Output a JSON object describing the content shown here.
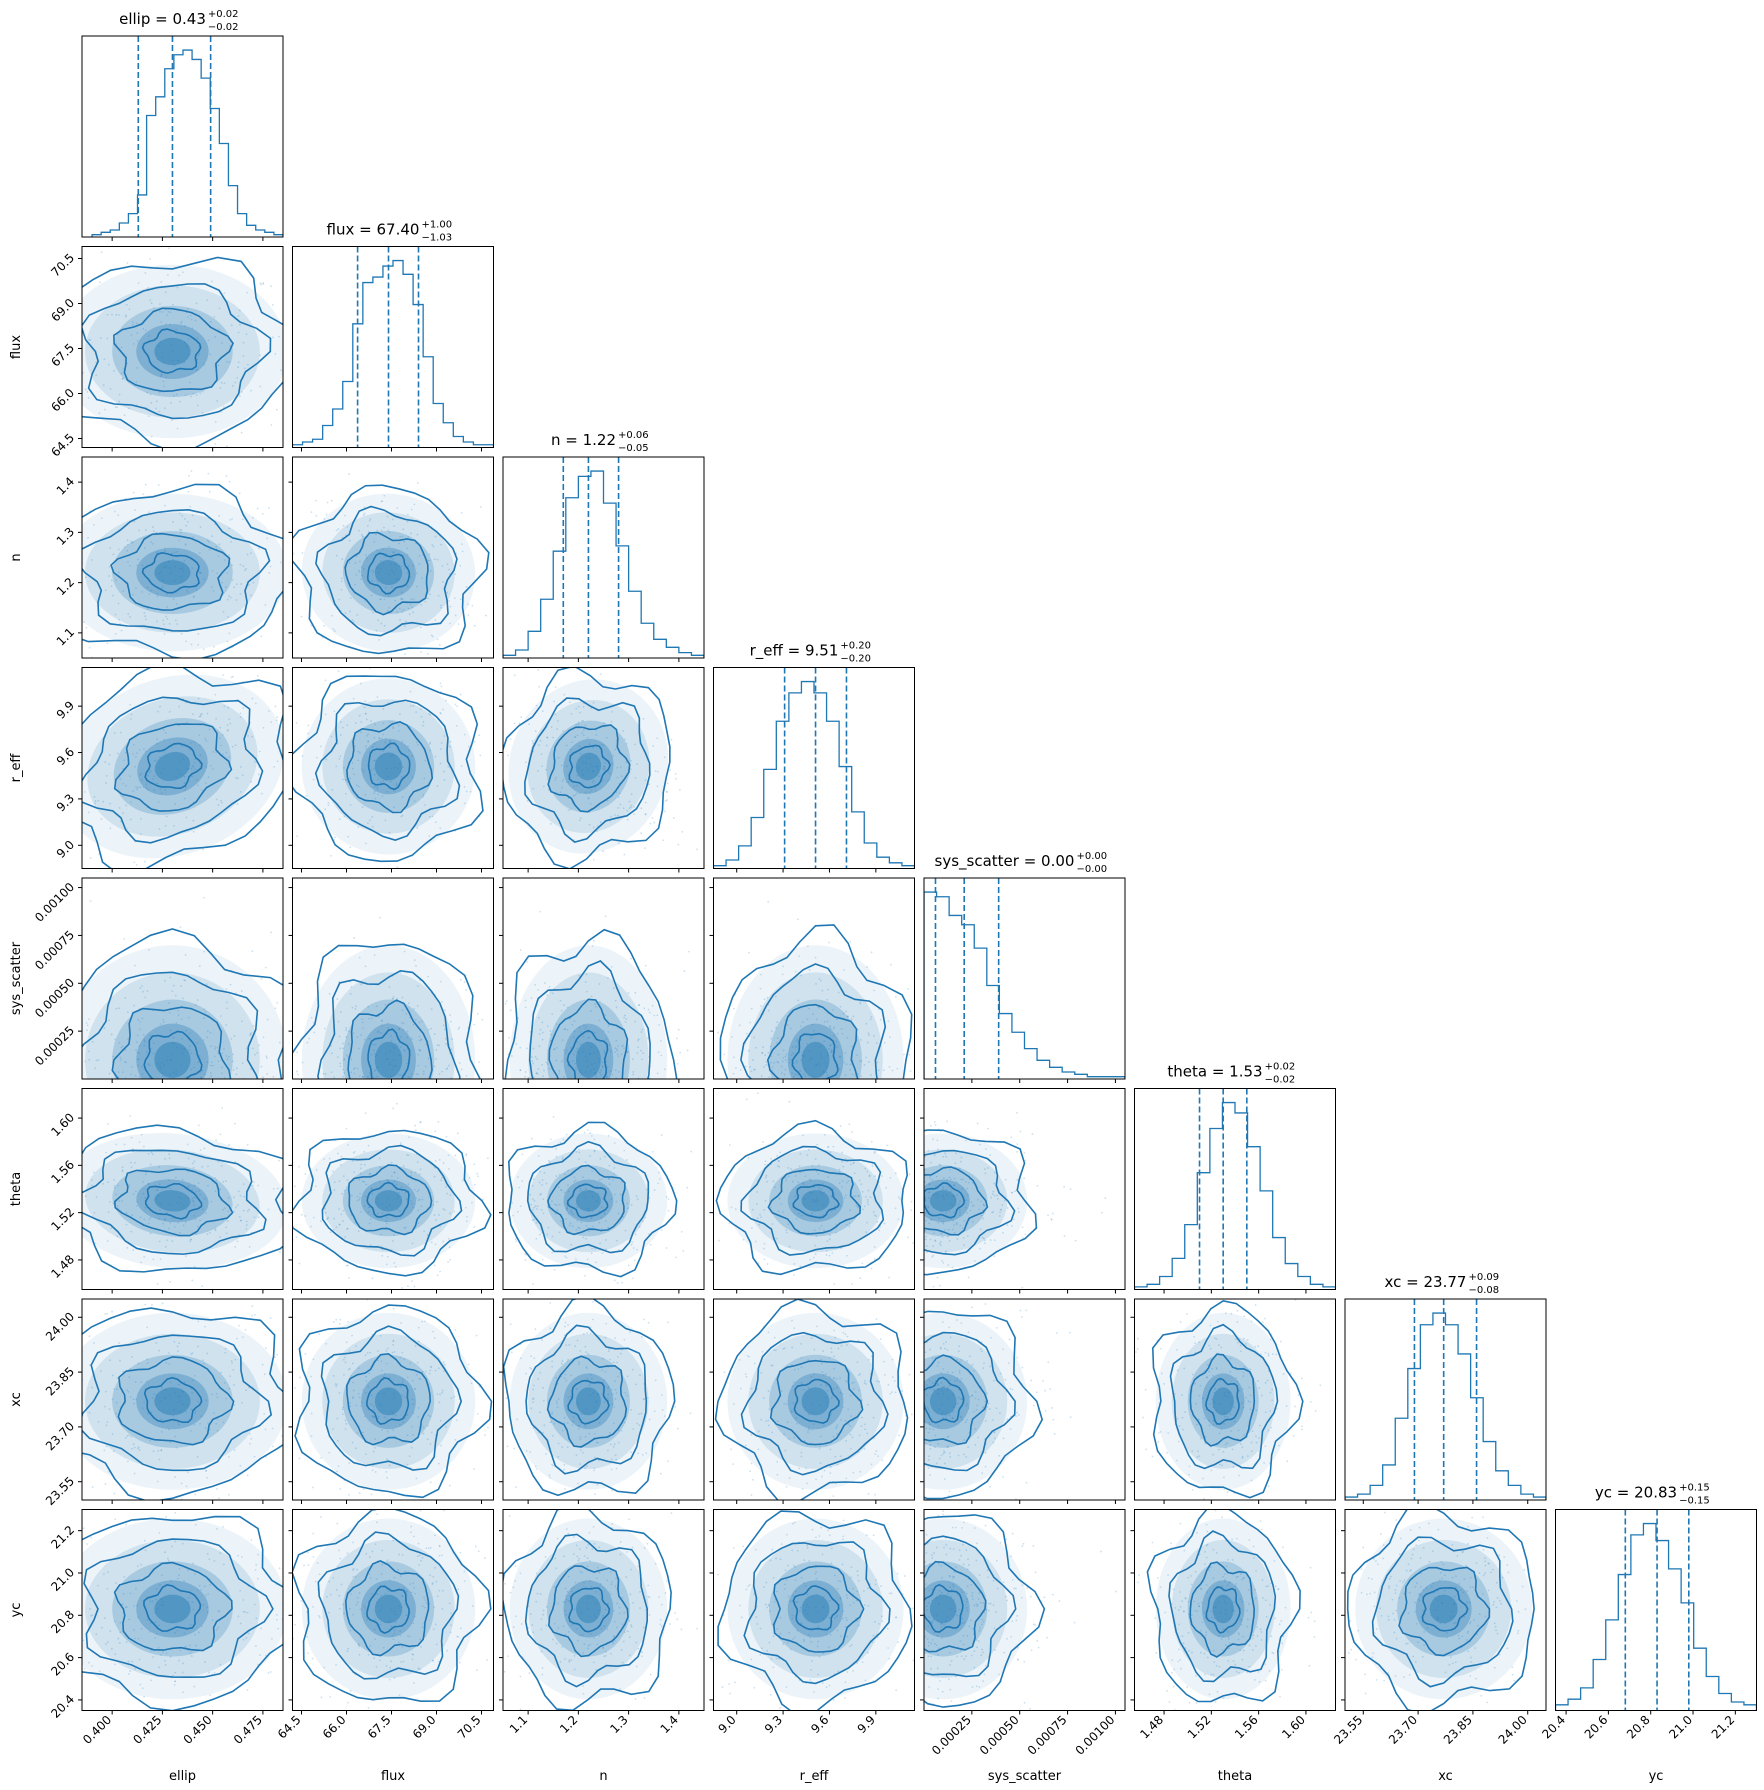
{
  "figure": {
    "type": "corner-plot",
    "n_params": 8,
    "accent_color": "#1f77b4"
  },
  "chart_data": {
    "type": "corner",
    "color": "#1f77b4",
    "parameters": [
      {
        "name": "ellip",
        "label": "ellip",
        "title_main": "ellip = 0.43",
        "title_plus": "+0.02",
        "title_minus": "−0.02",
        "median": 0.43,
        "plus": 0.02,
        "minus": 0.02,
        "range": [
          0.385,
          0.485
        ],
        "ticks": [
          0.4,
          0.425,
          0.45,
          0.475
        ],
        "tick_labels": [
          "0.400",
          "0.425",
          "0.450",
          "0.475"
        ],
        "quantiles": [
          0.413,
          0.43,
          0.449
        ],
        "hist": [
          1,
          2,
          3,
          6,
          10,
          18,
          52,
          60,
          72,
          78,
          80,
          76,
          68,
          55,
          40,
          22,
          10,
          5,
          3,
          2,
          1
        ],
        "hist_range": [
          0.39,
          0.485
        ]
      },
      {
        "name": "flux",
        "label": "flux",
        "title_main": "flux = 67.40",
        "title_plus": "+1.00",
        "title_minus": "−1.03",
        "median": 67.4,
        "plus": 1.0,
        "minus": 1.03,
        "range": [
          64.2,
          70.9
        ],
        "ticks": [
          64.5,
          66.0,
          67.5,
          69.0,
          70.5
        ],
        "tick_labels": [
          "64.5",
          "66.0",
          "67.5",
          "69.0",
          "70.5"
        ],
        "quantiles": [
          66.37,
          67.4,
          68.4
        ],
        "hist": [
          1,
          2,
          3,
          8,
          14,
          24,
          45,
          60,
          62,
          66,
          68,
          63,
          52,
          33,
          16,
          9,
          4,
          2,
          1,
          1
        ],
        "hist_range": [
          64.2,
          70.9
        ]
      },
      {
        "name": "n",
        "label": "n",
        "title_main": "n = 1.22",
        "title_plus": "+0.06",
        "title_minus": "−0.05",
        "median": 1.22,
        "plus": 0.06,
        "minus": 0.05,
        "range": [
          1.05,
          1.45
        ],
        "ticks": [
          1.1,
          1.2,
          1.3,
          1.4
        ],
        "tick_labels": [
          "1.1",
          "1.2",
          "1.3",
          "1.4"
        ],
        "quantiles": [
          1.17,
          1.22,
          1.28
        ],
        "hist": [
          1,
          3,
          10,
          22,
          40,
          60,
          68,
          70,
          58,
          42,
          25,
          13,
          7,
          4,
          2,
          1
        ],
        "hist_range": [
          1.05,
          1.45
        ]
      },
      {
        "name": "r_eff",
        "label": "r_eff",
        "title_main": "r_eff = 9.51",
        "title_plus": "+0.20",
        "title_minus": "−0.20",
        "median": 9.51,
        "plus": 0.2,
        "minus": 0.2,
        "range": [
          8.85,
          10.15
        ],
        "ticks": [
          9.0,
          9.3,
          9.6,
          9.9
        ],
        "tick_labels": [
          "9.0",
          "9.3",
          "9.6",
          "9.9"
        ],
        "quantiles": [
          9.31,
          9.51,
          9.71
        ],
        "hist": [
          1,
          3,
          8,
          18,
          35,
          52,
          62,
          66,
          62,
          52,
          36,
          20,
          9,
          4,
          2,
          1
        ],
        "hist_range": [
          8.85,
          10.15
        ]
      },
      {
        "name": "sys_scatter",
        "label": "sys_scatter",
        "title_main": "sys_scatter = 0.00",
        "title_plus": "+0.00",
        "title_minus": "−0.00",
        "median": 0.00015,
        "plus": 0.00022,
        "minus": 0.0001,
        "range": [
          0.0,
          0.00105
        ],
        "ticks": [
          0.00025,
          0.0005,
          0.00075,
          0.001
        ],
        "tick_labels": [
          "0.00025",
          "0.00050",
          "0.00075",
          "0.00100"
        ],
        "quantiles": [
          6e-05,
          0.00021,
          0.00039
        ],
        "hist": [
          80,
          78,
          70,
          66,
          56,
          40,
          28,
          20,
          13,
          8,
          5,
          3,
          2,
          1,
          1,
          1
        ],
        "hist_range": [
          0.0,
          0.00105
        ]
      },
      {
        "name": "theta",
        "label": "theta",
        "title_main": "theta = 1.53",
        "title_plus": "+0.02",
        "title_minus": "−0.02",
        "median": 1.53,
        "plus": 0.02,
        "minus": 0.02,
        "range": [
          1.455,
          1.625
        ],
        "ticks": [
          1.48,
          1.52,
          1.56,
          1.6
        ],
        "tick_labels": [
          "1.48",
          "1.52",
          "1.56",
          "1.60"
        ],
        "quantiles": [
          1.51,
          1.53,
          1.55
        ],
        "hist": [
          1,
          2,
          5,
          12,
          25,
          45,
          62,
          72,
          68,
          55,
          38,
          20,
          10,
          5,
          2,
          1
        ],
        "hist_range": [
          1.455,
          1.625
        ]
      },
      {
        "name": "xc",
        "label": "xc",
        "title_main": "xc = 23.77",
        "title_plus": "+0.09",
        "title_minus": "−0.08",
        "median": 23.77,
        "plus": 0.09,
        "minus": 0.08,
        "range": [
          23.5,
          24.05
        ],
        "ticks": [
          23.55,
          23.7,
          23.85,
          24.0
        ],
        "tick_labels": [
          "23.55",
          "23.70",
          "23.85",
          "24.00"
        ],
        "quantiles": [
          23.69,
          23.77,
          23.86
        ],
        "hist": [
          1,
          2,
          5,
          12,
          28,
          45,
          60,
          64,
          60,
          50,
          35,
          20,
          10,
          5,
          2,
          1
        ],
        "hist_range": [
          23.5,
          24.05
        ]
      },
      {
        "name": "yc",
        "label": "yc",
        "title_main": "yc = 20.83",
        "title_plus": "+0.15",
        "title_minus": "−0.15",
        "median": 20.83,
        "plus": 0.15,
        "minus": 0.15,
        "range": [
          20.35,
          21.3
        ],
        "ticks": [
          20.4,
          20.6,
          20.8,
          21.0,
          21.2
        ],
        "tick_labels": [
          "20.4",
          "20.6",
          "20.8",
          "21.0",
          "21.2"
        ],
        "quantiles": [
          20.68,
          20.83,
          20.98
        ],
        "hist": [
          2,
          4,
          8,
          18,
          32,
          48,
          62,
          66,
          60,
          50,
          38,
          22,
          12,
          6,
          3,
          2
        ],
        "hist_range": [
          20.35,
          21.3
        ]
      }
    ],
    "correlations": {
      "ellip|r_eff": 0.6,
      "flux|r_eff": 0.15,
      "n|r_eff": -0.55,
      "flux|n": -0.2,
      "ellip|theta": -0.15,
      "ellip|flux": 0.0
    }
  }
}
